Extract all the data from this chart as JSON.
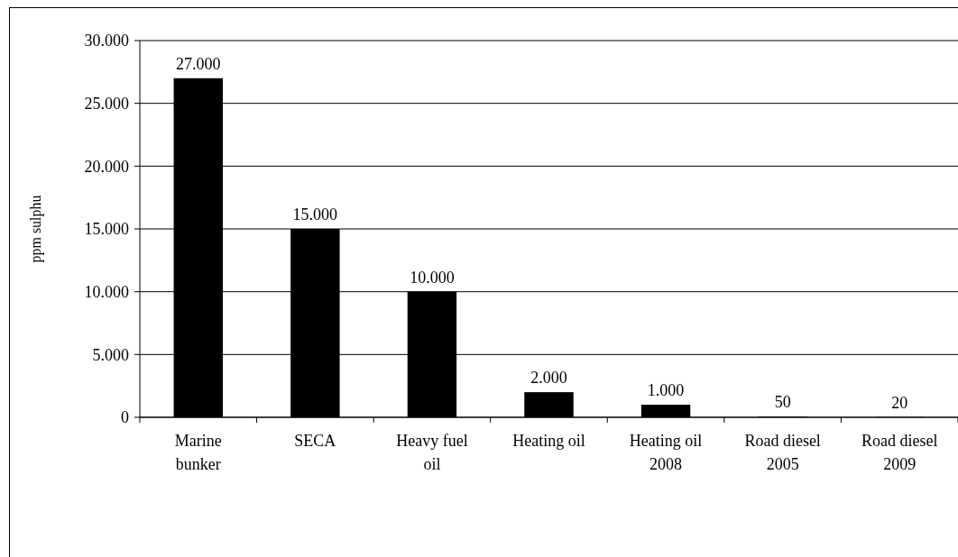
{
  "chart_data": {
    "type": "bar",
    "ylabel": "ppm sulphu",
    "categories": [
      "Marine bunker",
      "SECA",
      "Heavy fuel oil",
      "Heating oil",
      "Heating oil 2008",
      "Road diesel 2005",
      "Road diesel 2009"
    ],
    "values": [
      27000,
      15000,
      10000,
      2000,
      1000,
      50,
      20
    ],
    "value_labels": [
      "27.000",
      "15.000",
      "10.000",
      "2.000",
      "1.000",
      "50",
      "20"
    ],
    "color": "#000000",
    "ylim": [
      0,
      30000
    ],
    "yticks": [
      {
        "value": 0,
        "label": "0"
      },
      {
        "value": 5000,
        "label": "5.000"
      },
      {
        "value": 10000,
        "label": "10.000"
      },
      {
        "value": 15000,
        "label": "15.000"
      },
      {
        "value": 20000,
        "label": "20.000"
      },
      {
        "value": 25000,
        "label": "25.000"
      },
      {
        "value": 30000,
        "label": "30.000"
      }
    ],
    "grid": "y"
  }
}
